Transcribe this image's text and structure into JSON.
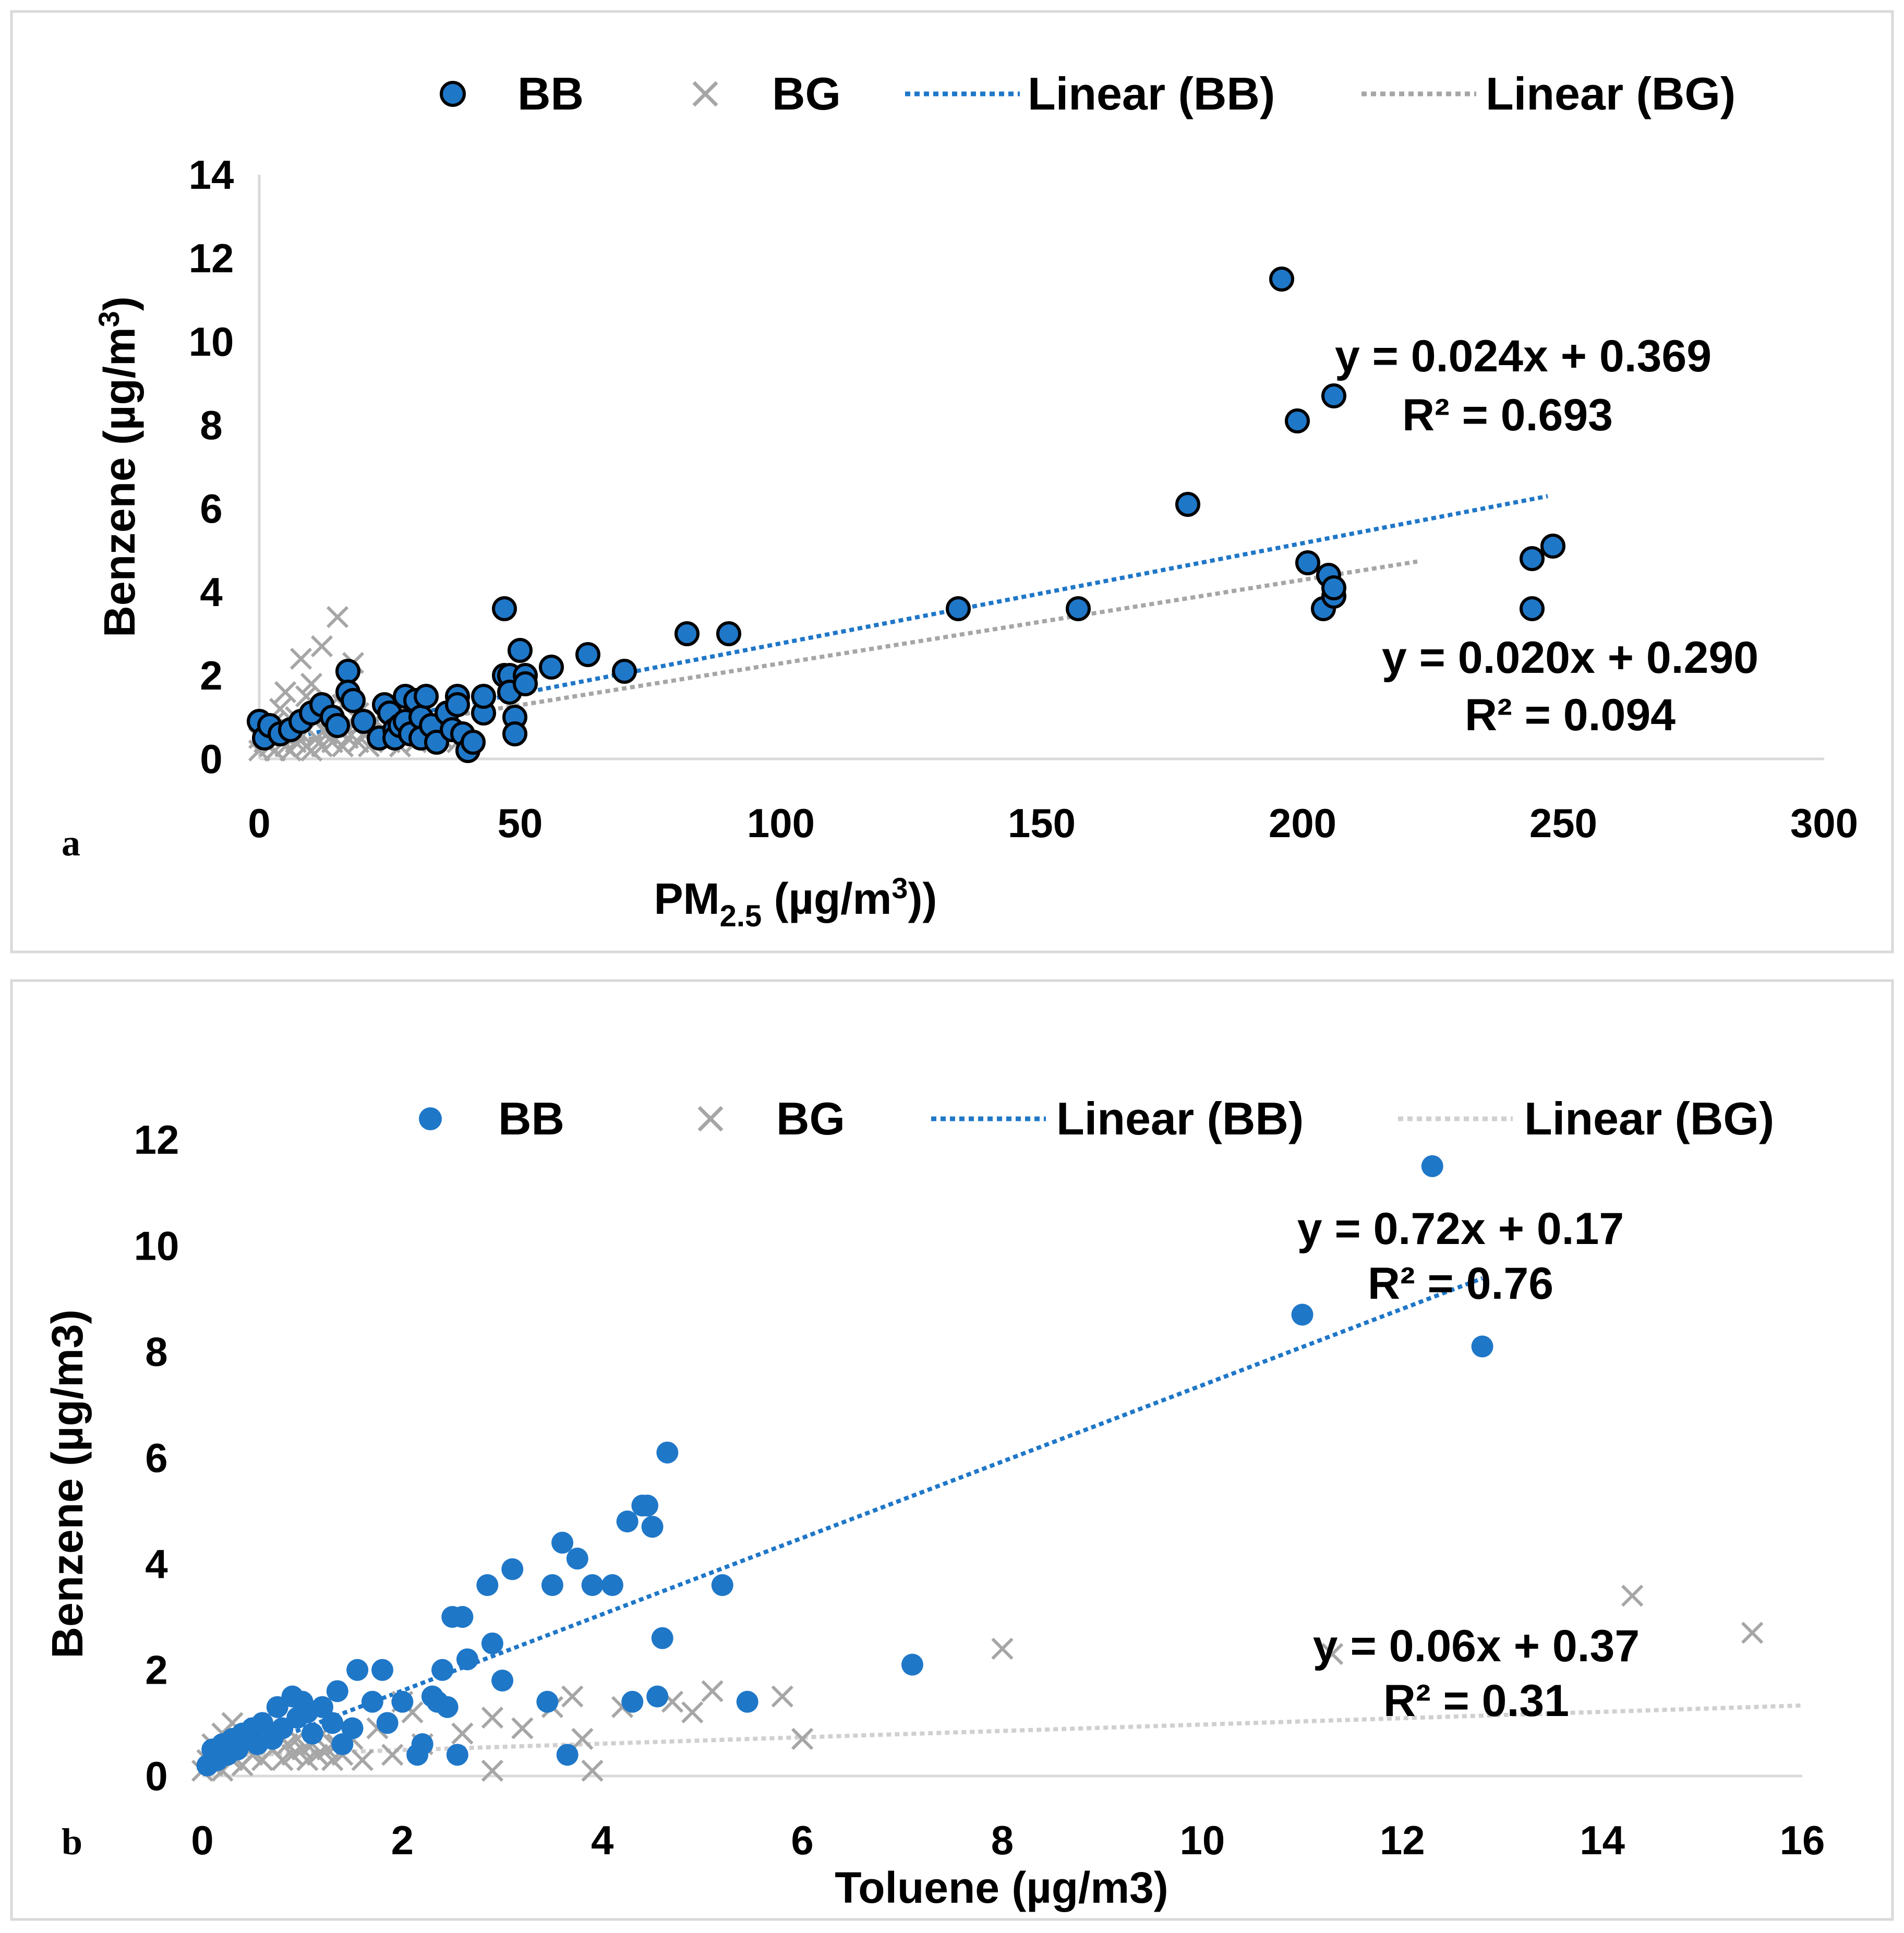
{
  "colors": {
    "bb": "#1f77c8",
    "bg": "#a6a6a6",
    "frame": "#d9d9d9"
  },
  "chart_data": [
    {
      "type": "scatter",
      "panel_label": "a",
      "xlabel": "PM2.5 (µg/m3))",
      "xlabel_main": "PM",
      "xlabel_sub": "2.5",
      "xlabel_rest": " (µg/m",
      "xlabel_sup": "3",
      "xlabel_end": "))",
      "ylabel": "Benzene (µg/m3)",
      "ylabel_main": "Benzene (µg/m",
      "ylabel_sup": "3",
      "ylabel_end": ")",
      "xlim": [
        0,
        300
      ],
      "ylim": [
        0,
        14
      ],
      "xticks": [
        0,
        50,
        100,
        150,
        200,
        250,
        300
      ],
      "yticks": [
        0,
        2,
        4,
        6,
        8,
        10,
        12,
        14
      ],
      "legend": [
        "BB",
        "BG",
        "Linear (BB)",
        "Linear (BG)"
      ],
      "bb_marker_outlined": true,
      "series": [
        {
          "name": "BB",
          "marker": "circle",
          "points": [
            [
              0,
              0.9
            ],
            [
              1,
              0.5
            ],
            [
              2,
              0.8
            ],
            [
              4,
              0.6
            ],
            [
              6,
              0.7
            ],
            [
              8,
              0.9
            ],
            [
              10,
              1.1
            ],
            [
              12,
              1.3
            ],
            [
              14,
              1.0
            ],
            [
              15,
              0.8
            ],
            [
              17,
              2.1
            ],
            [
              17,
              1.6
            ],
            [
              18,
              1.4
            ],
            [
              20,
              0.9
            ],
            [
              23,
              0.5
            ],
            [
              24,
              1.3
            ],
            [
              25,
              1.1
            ],
            [
              26,
              0.7
            ],
            [
              26,
              0.5
            ],
            [
              27,
              0.8
            ],
            [
              28,
              1.5
            ],
            [
              28,
              0.9
            ],
            [
              29,
              0.6
            ],
            [
              30,
              1.4
            ],
            [
              31,
              1.0
            ],
            [
              31,
              0.5
            ],
            [
              32,
              1.5
            ],
            [
              33,
              0.8
            ],
            [
              34,
              0.4
            ],
            [
              36,
              1.1
            ],
            [
              37,
              0.7
            ],
            [
              38,
              1.5
            ],
            [
              38,
              1.3
            ],
            [
              39,
              0.6
            ],
            [
              40,
              0.2
            ],
            [
              41,
              0.4
            ],
            [
              43,
              1.1
            ],
            [
              43,
              1.5
            ],
            [
              47,
              3.6
            ],
            [
              47,
              2.0
            ],
            [
              48,
              2.0
            ],
            [
              48,
              1.6
            ],
            [
              49,
              1.0
            ],
            [
              49,
              0.6
            ],
            [
              50,
              2.6
            ],
            [
              51,
              2.0
            ],
            [
              51,
              1.8
            ],
            [
              56,
              2.2
            ],
            [
              63,
              2.5
            ],
            [
              70,
              2.1
            ],
            [
              82,
              3.0
            ],
            [
              90,
              3.0
            ],
            [
              134,
              3.6
            ],
            [
              157,
              3.6
            ],
            [
              178,
              6.1
            ],
            [
              196,
              11.5
            ],
            [
              199,
              8.1
            ],
            [
              201,
              4.7
            ],
            [
              204,
              3.6
            ],
            [
              205,
              4.4
            ],
            [
              206,
              3.9
            ],
            [
              206,
              4.1
            ],
            [
              206,
              8.7
            ],
            [
              244,
              3.6
            ],
            [
              244,
              4.8
            ],
            [
              248,
              5.1
            ]
          ]
        },
        {
          "name": "BG",
          "marker": "x",
          "points": [
            [
              0,
              0.2
            ],
            [
              0,
              0.5
            ],
            [
              1,
              0.4
            ],
            [
              1,
              0.8
            ],
            [
              2,
              0.3
            ],
            [
              2,
              0.6
            ],
            [
              3,
              0.2
            ],
            [
              3,
              0.9
            ],
            [
              4,
              0.5
            ],
            [
              4,
              1.2
            ],
            [
              5,
              0.3
            ],
            [
              5,
              1.6
            ],
            [
              6,
              0.2
            ],
            [
              6,
              0.7
            ],
            [
              7,
              1.0
            ],
            [
              7,
              0.4
            ],
            [
              8,
              2.4
            ],
            [
              8,
              0.6
            ],
            [
              9,
              1.5
            ],
            [
              9,
              0.3
            ],
            [
              10,
              1.8
            ],
            [
              10,
              0.2
            ],
            [
              11,
              0.9
            ],
            [
              11,
              0.5
            ],
            [
              12,
              2.7
            ],
            [
              12,
              0.3
            ],
            [
              13,
              1.2
            ],
            [
              13,
              0.6
            ],
            [
              14,
              0.4
            ],
            [
              14,
              1.0
            ],
            [
              15,
              3.4
            ],
            [
              15,
              0.7
            ],
            [
              16,
              0.3
            ],
            [
              16,
              1.3
            ],
            [
              17,
              0.5
            ],
            [
              18,
              2.3
            ],
            [
              18,
              0.8
            ],
            [
              19,
              0.4
            ],
            [
              19,
              1.1
            ],
            [
              20,
              0.6
            ],
            [
              21,
              0.3
            ],
            [
              22,
              0.9
            ],
            [
              23,
              0.5
            ],
            [
              24,
              0.7
            ],
            [
              25,
              0.4
            ],
            [
              26,
              0.6
            ],
            [
              27,
              0.3
            ],
            [
              28,
              0.5
            ],
            [
              29,
              0.8
            ],
            [
              30,
              0.4
            ],
            [
              32,
              0.6
            ],
            [
              35,
              0.5
            ],
            [
              38,
              0.4
            ]
          ]
        }
      ],
      "trendlines": [
        {
          "name": "Linear (BB)",
          "slope": 0.024,
          "intercept": 0.369,
          "x_range": [
            0,
            247
          ],
          "equation": "y = 0.024x + 0.369",
          "r2": "R² = 0.693"
        },
        {
          "name": "Linear (BG)",
          "slope": 0.02,
          "intercept": 0.29,
          "x_range": [
            0,
            222
          ],
          "equation": "y = 0.020x + 0.290",
          "r2": "R² = 0.094"
        }
      ]
    },
    {
      "type": "scatter",
      "panel_label": "b",
      "xlabel": "Toluene (µg/m3)",
      "ylabel": "Benzene (µg/m3)",
      "xlim": [
        0,
        16
      ],
      "ylim": [
        0,
        12
      ],
      "xticks": [
        0,
        2,
        4,
        6,
        8,
        10,
        12,
        14,
        16
      ],
      "yticks": [
        0,
        2,
        4,
        6,
        8,
        10,
        12
      ],
      "legend": [
        "BB",
        "BG",
        "Linear (BB)",
        "Linear (BG)"
      ],
      "bb_marker_outlined": false,
      "series": [
        {
          "name": "BB",
          "marker": "circle",
          "points": [
            [
              0.05,
              0.2
            ],
            [
              0.1,
              0.5
            ],
            [
              0.15,
              0.3
            ],
            [
              0.2,
              0.6
            ],
            [
              0.25,
              0.4
            ],
            [
              0.3,
              0.7
            ],
            [
              0.35,
              0.5
            ],
            [
              0.4,
              0.8
            ],
            [
              0.5,
              0.9
            ],
            [
              0.55,
              0.6
            ],
            [
              0.6,
              1.0
            ],
            [
              0.7,
              0.7
            ],
            [
              0.75,
              1.3
            ],
            [
              0.8,
              0.9
            ],
            [
              0.9,
              1.5
            ],
            [
              0.95,
              1.1
            ],
            [
              1.0,
              1.4
            ],
            [
              1.05,
              1.2
            ],
            [
              1.1,
              0.8
            ],
            [
              1.2,
              1.3
            ],
            [
              1.3,
              1.0
            ],
            [
              1.35,
              1.6
            ],
            [
              1.4,
              0.6
            ],
            [
              1.5,
              0.9
            ],
            [
              1.55,
              2.0
            ],
            [
              1.7,
              1.4
            ],
            [
              1.8,
              2.0
            ],
            [
              1.85,
              1.0
            ],
            [
              2.0,
              1.4
            ],
            [
              2.15,
              0.4
            ],
            [
              2.2,
              0.6
            ],
            [
              2.3,
              1.5
            ],
            [
              2.35,
              1.4
            ],
            [
              2.4,
              2.0
            ],
            [
              2.45,
              1.3
            ],
            [
              2.5,
              3.0
            ],
            [
              2.55,
              0.4
            ],
            [
              2.6,
              3.0
            ],
            [
              2.65,
              2.2
            ],
            [
              2.85,
              3.6
            ],
            [
              2.9,
              2.5
            ],
            [
              3.0,
              1.8
            ],
            [
              3.1,
              3.9
            ],
            [
              3.45,
              1.4
            ],
            [
              3.5,
              3.6
            ],
            [
              3.6,
              4.4
            ],
            [
              3.65,
              0.4
            ],
            [
              3.75,
              4.1
            ],
            [
              3.9,
              3.6
            ],
            [
              4.1,
              3.6
            ],
            [
              4.25,
              4.8
            ],
            [
              4.3,
              1.4
            ],
            [
              4.4,
              5.1
            ],
            [
              4.45,
              5.1
            ],
            [
              4.5,
              4.7
            ],
            [
              4.55,
              1.5
            ],
            [
              4.6,
              2.6
            ],
            [
              4.65,
              6.1
            ],
            [
              5.2,
              3.6
            ],
            [
              5.45,
              1.4
            ],
            [
              7.1,
              2.1
            ],
            [
              11.0,
              8.7
            ],
            [
              12.3,
              11.5
            ],
            [
              12.8,
              8.1
            ]
          ]
        },
        {
          "name": "BG",
          "marker": "x",
          "points": [
            [
              0.0,
              0.1
            ],
            [
              0.05,
              0.3
            ],
            [
              0.1,
              0.6
            ],
            [
              0.1,
              0.2
            ],
            [
              0.15,
              0.4
            ],
            [
              0.2,
              0.8
            ],
            [
              0.2,
              0.1
            ],
            [
              0.25,
              0.5
            ],
            [
              0.3,
              0.3
            ],
            [
              0.3,
              1.0
            ],
            [
              0.35,
              0.6
            ],
            [
              0.4,
              0.2
            ],
            [
              0.45,
              0.7
            ],
            [
              0.5,
              0.4
            ],
            [
              0.55,
              0.9
            ],
            [
              0.6,
              0.3
            ],
            [
              0.65,
              0.6
            ],
            [
              0.7,
              0.5
            ],
            [
              0.75,
              0.8
            ],
            [
              0.8,
              0.3
            ],
            [
              0.85,
              0.6
            ],
            [
              0.9,
              0.4
            ],
            [
              0.95,
              0.7
            ],
            [
              1.0,
              0.5
            ],
            [
              1.05,
              0.3
            ],
            [
              1.1,
              0.6
            ],
            [
              1.15,
              0.4
            ],
            [
              1.2,
              0.8
            ],
            [
              1.25,
              0.5
            ],
            [
              1.3,
              0.3
            ],
            [
              1.35,
              0.6
            ],
            [
              1.4,
              0.4
            ],
            [
              1.5,
              0.7
            ],
            [
              1.6,
              0.3
            ],
            [
              1.75,
              0.9
            ],
            [
              1.9,
              0.4
            ],
            [
              2.0,
              1.4
            ],
            [
              2.1,
              1.2
            ],
            [
              2.2,
              0.6
            ],
            [
              2.6,
              0.8
            ],
            [
              2.9,
              0.1
            ],
            [
              2.9,
              1.1
            ],
            [
              3.2,
              0.9
            ],
            [
              3.5,
              1.3
            ],
            [
              3.7,
              1.5
            ],
            [
              3.8,
              0.7
            ],
            [
              3.9,
              0.1
            ],
            [
              4.2,
              1.3
            ],
            [
              4.7,
              1.4
            ],
            [
              4.9,
              1.2
            ],
            [
              5.1,
              1.6
            ],
            [
              5.8,
              1.5
            ],
            [
              6.0,
              0.7
            ],
            [
              8.0,
              2.4
            ],
            [
              11.3,
              2.3
            ],
            [
              14.3,
              3.4
            ],
            [
              15.5,
              2.7
            ]
          ]
        }
      ],
      "trendlines": [
        {
          "name": "Linear (BB)",
          "slope": 0.72,
          "intercept": 0.17,
          "x_range": [
            0,
            12.8
          ],
          "equation": "y = 0.72x + 0.17",
          "r2": "R² = 0.76"
        },
        {
          "name": "Linear (BG)",
          "slope": 0.06,
          "intercept": 0.37,
          "x_range": [
            0,
            16
          ],
          "equation": "y = 0.06x + 0.37",
          "r2": "R² = 0.31"
        }
      ]
    }
  ]
}
